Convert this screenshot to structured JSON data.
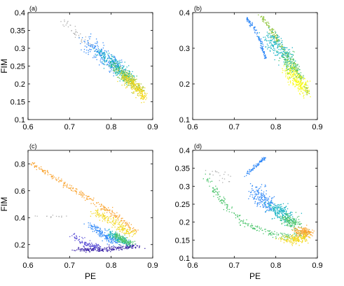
{
  "chart_data": [
    {
      "type": "scatter",
      "panel_label": "(a)",
      "xlabel": "",
      "ylabel": "FIM",
      "xlim": [
        0.6,
        0.9
      ],
      "ylim": [
        0.1,
        0.4
      ],
      "xticks": [
        0.6,
        0.7,
        0.8,
        0.9
      ],
      "yticks": [
        0.1,
        0.15,
        0.2,
        0.25,
        0.3,
        0.35,
        0.4
      ],
      "xtick_labels": [
        "0.6",
        "0.7",
        "0.8",
        "0.9"
      ],
      "ytick_labels": [
        "0.1",
        "0.15",
        "0.2",
        "0.25",
        "0.3",
        "0.35",
        "0.4"
      ],
      "grid": false,
      "colormap": [
        "#3e26a8",
        "#2e87f7",
        "#1bb5c4",
        "#4bc46b",
        "#a8c42e",
        "#f3d81f",
        "#f9fb0e",
        "#f9a431"
      ],
      "clusters": [
        {
          "color": "#b0b0b0",
          "pts": [
            [
              0.67,
              0.385
            ],
            [
              0.7,
              0.36
            ],
            [
              0.73,
              0.33
            ],
            [
              0.75,
              0.305
            ]
          ],
          "spread": [
            0.006,
            0.006
          ],
          "n": 40
        },
        {
          "color": "#2e87f7",
          "pts": [
            [
              0.74,
              0.32
            ],
            [
              0.77,
              0.29
            ],
            [
              0.8,
              0.26
            ],
            [
              0.82,
              0.24
            ]
          ],
          "spread": [
            0.01,
            0.01
          ],
          "n": 220
        },
        {
          "color": "#1bb5c4",
          "pts": [
            [
              0.77,
              0.29
            ],
            [
              0.8,
              0.265
            ],
            [
              0.82,
              0.24
            ],
            [
              0.84,
              0.22
            ]
          ],
          "spread": [
            0.008,
            0.008
          ],
          "n": 200
        },
        {
          "color": "#4bc46b",
          "pts": [
            [
              0.8,
              0.255
            ],
            [
              0.83,
              0.23
            ],
            [
              0.85,
              0.205
            ]
          ],
          "spread": [
            0.007,
            0.007
          ],
          "n": 140
        },
        {
          "color": "#a8c42e",
          "pts": [
            [
              0.82,
              0.235
            ],
            [
              0.85,
              0.205
            ],
            [
              0.87,
              0.18
            ]
          ],
          "spread": [
            0.007,
            0.007
          ],
          "n": 160
        },
        {
          "color": "#f3d81f",
          "pts": [
            [
              0.83,
              0.22
            ],
            [
              0.86,
              0.19
            ],
            [
              0.88,
              0.16
            ]
          ],
          "spread": [
            0.006,
            0.006
          ],
          "n": 200
        }
      ]
    },
    {
      "type": "scatter",
      "panel_label": "(b)",
      "xlabel": "",
      "ylabel": "",
      "xlim": [
        0.6,
        0.9
      ],
      "ylim": [
        0.1,
        0.4
      ],
      "xticks": [
        0.6,
        0.7,
        0.8,
        0.9
      ],
      "yticks": [
        0.1,
        0.2,
        0.3,
        0.4
      ],
      "xtick_labels": [
        "0.6",
        "0.7",
        "0.8",
        "0.9"
      ],
      "ytick_labels": [
        "0.1",
        "0.2",
        "0.3",
        "0.4"
      ],
      "grid": false,
      "clusters": [
        {
          "color": "#2e87f7",
          "pts": [
            [
              0.73,
              0.385
            ],
            [
              0.75,
              0.35
            ],
            [
              0.765,
              0.315
            ],
            [
              0.775,
              0.27
            ]
          ],
          "spread": [
            0.002,
            0.002
          ],
          "n": 120
        },
        {
          "color": "#8fc43a",
          "pts": [
            [
              0.765,
              0.39
            ],
            [
              0.8,
              0.33
            ],
            [
              0.84,
              0.26
            ],
            [
              0.88,
              0.17
            ]
          ],
          "spread": [
            0.003,
            0.003
          ],
          "n": 180
        },
        {
          "color": "#1bb5c4",
          "pts": [
            [
              0.78,
              0.335
            ],
            [
              0.81,
              0.3
            ],
            [
              0.83,
              0.27
            ]
          ],
          "spread": [
            0.01,
            0.012
          ],
          "n": 200
        },
        {
          "color": "#4bc46b",
          "pts": [
            [
              0.82,
              0.28
            ],
            [
              0.84,
              0.25
            ],
            [
              0.855,
              0.23
            ]
          ],
          "spread": [
            0.008,
            0.01
          ],
          "n": 160
        },
        {
          "color": "#f9fb0e",
          "pts": [
            [
              0.83,
              0.24
            ],
            [
              0.85,
              0.21
            ],
            [
              0.87,
              0.18
            ]
          ],
          "spread": [
            0.008,
            0.01
          ],
          "n": 220
        }
      ]
    },
    {
      "type": "scatter",
      "panel_label": "(c)",
      "xlabel": "PE",
      "ylabel": "FIM",
      "xlim": [
        0.6,
        0.9
      ],
      "ylim": [
        0.1,
        0.9
      ],
      "xticks": [
        0.6,
        0.7,
        0.8,
        0.9
      ],
      "yticks": [
        0.2,
        0.4,
        0.6,
        0.8
      ],
      "xtick_labels": [
        "0.6",
        "0.7",
        "0.8",
        "0.9"
      ],
      "ytick_labels": [
        "0.2",
        "0.4",
        "0.6",
        "0.8"
      ],
      "grid": false,
      "clusters": [
        {
          "color": "#f9a431",
          "pts": [
            [
              0.61,
              0.8
            ],
            [
              0.66,
              0.7
            ],
            [
              0.72,
              0.59
            ],
            [
              0.78,
              0.48
            ],
            [
              0.82,
              0.4
            ],
            [
              0.86,
              0.29
            ]
          ],
          "spread": [
            0.004,
            0.01
          ],
          "n": 260
        },
        {
          "color": "#f3d81f",
          "pts": [
            [
              0.76,
              0.45
            ],
            [
              0.81,
              0.36
            ],
            [
              0.85,
              0.27
            ]
          ],
          "spread": [
            0.008,
            0.012
          ],
          "n": 180
        },
        {
          "color": "#3e26a8",
          "pts": [
            [
              0.72,
              0.16
            ],
            [
              0.77,
              0.165
            ],
            [
              0.82,
              0.175
            ],
            [
              0.86,
              0.19
            ]
          ],
          "spread": [
            0.01,
            0.008
          ],
          "n": 220
        },
        {
          "color": "#5b50d6",
          "pts": [
            [
              0.71,
              0.26
            ],
            [
              0.74,
              0.2
            ],
            [
              0.77,
              0.18
            ]
          ],
          "spread": [
            0.004,
            0.012
          ],
          "n": 100
        },
        {
          "color": "#2e87f7",
          "pts": [
            [
              0.75,
              0.35
            ],
            [
              0.78,
              0.27
            ],
            [
              0.81,
              0.22
            ]
          ],
          "spread": [
            0.006,
            0.012
          ],
          "n": 160
        },
        {
          "color": "#1bb5c4",
          "pts": [
            [
              0.79,
              0.3
            ],
            [
              0.82,
              0.24
            ],
            [
              0.84,
              0.21
            ]
          ],
          "spread": [
            0.006,
            0.012
          ],
          "n": 140
        },
        {
          "color": "#4bc46b",
          "pts": [
            [
              0.81,
              0.27
            ],
            [
              0.83,
              0.23
            ],
            [
              0.85,
              0.21
            ]
          ],
          "spread": [
            0.006,
            0.01
          ],
          "n": 140
        },
        {
          "color": "#b0b0b0",
          "pts": [
            [
              0.63,
              0.41
            ],
            [
              0.66,
              0.41
            ],
            [
              0.69,
              0.41
            ]
          ],
          "spread": [
            0.01,
            0.004
          ],
          "n": 14
        }
      ]
    },
    {
      "type": "scatter",
      "panel_label": "(d)",
      "xlabel": "PE",
      "ylabel": "",
      "xlim": [
        0.6,
        0.9
      ],
      "ylim": [
        0.1,
        0.4
      ],
      "xticks": [
        0.6,
        0.7,
        0.8,
        0.9
      ],
      "yticks": [
        0.1,
        0.15,
        0.2,
        0.25,
        0.3,
        0.35,
        0.4
      ],
      "xtick_labels": [
        "0.6",
        "0.7",
        "0.8",
        "0.9"
      ],
      "ytick_labels": [
        "0.1",
        "0.15",
        "0.2",
        "0.25",
        "0.3",
        "0.35",
        "0.4"
      ],
      "grid": false,
      "clusters": [
        {
          "color": "#2e87f7",
          "pts": [
            [
              0.725,
              0.33
            ],
            [
              0.745,
              0.35
            ],
            [
              0.765,
              0.37
            ],
            [
              0.775,
              0.38
            ]
          ],
          "spread": [
            0.002,
            0.002
          ],
          "n": 80
        },
        {
          "color": "#4bc46b",
          "pts": [
            [
              0.63,
              0.33
            ],
            [
              0.67,
              0.26
            ],
            [
              0.72,
              0.2
            ],
            [
              0.78,
              0.17
            ],
            [
              0.83,
              0.16
            ],
            [
              0.88,
              0.17
            ]
          ],
          "spread": [
            0.004,
            0.005
          ],
          "n": 240
        },
        {
          "color": "#2e87f7",
          "pts": [
            [
              0.75,
              0.29
            ],
            [
              0.77,
              0.26
            ],
            [
              0.79,
              0.24
            ]
          ],
          "spread": [
            0.01,
            0.012
          ],
          "n": 180
        },
        {
          "color": "#1bb5c4",
          "pts": [
            [
              0.79,
              0.245
            ],
            [
              0.81,
              0.23
            ],
            [
              0.83,
              0.21
            ]
          ],
          "spread": [
            0.01,
            0.01
          ],
          "n": 200
        },
        {
          "color": "#4bc46b",
          "pts": [
            [
              0.82,
              0.215
            ],
            [
              0.84,
              0.2
            ],
            [
              0.85,
              0.19
            ]
          ],
          "spread": [
            0.008,
            0.008
          ],
          "n": 150
        },
        {
          "color": "#f9a431",
          "pts": [
            [
              0.85,
              0.175
            ],
            [
              0.87,
              0.17
            ],
            [
              0.88,
              0.17
            ]
          ],
          "spread": [
            0.008,
            0.006
          ],
          "n": 160
        },
        {
          "color": "#f3d81f",
          "pts": [
            [
              0.82,
              0.155
            ],
            [
              0.85,
              0.15
            ],
            [
              0.87,
              0.16
            ]
          ],
          "spread": [
            0.01,
            0.006
          ],
          "n": 160
        },
        {
          "color": "#b0b0b0",
          "pts": [
            [
              0.64,
              0.34
            ],
            [
              0.67,
              0.33
            ],
            [
              0.69,
              0.31
            ]
          ],
          "spread": [
            0.01,
            0.01
          ],
          "n": 20
        }
      ]
    }
  ]
}
